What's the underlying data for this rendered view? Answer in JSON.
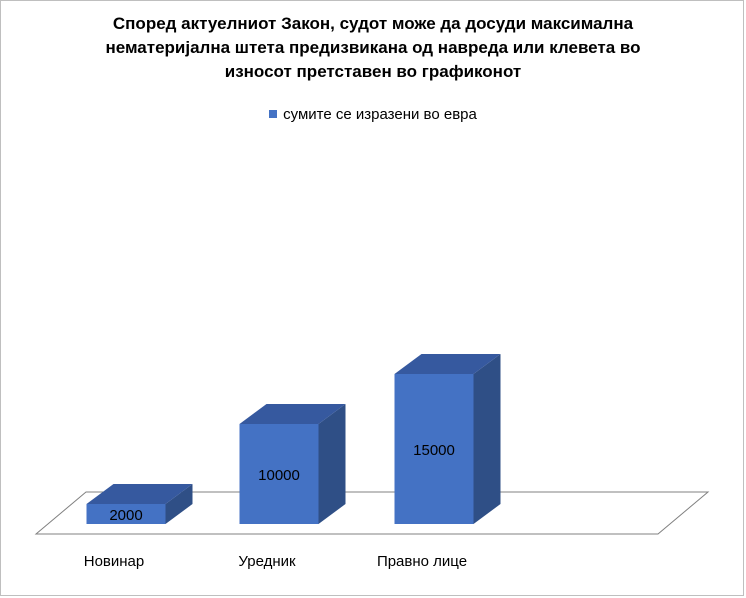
{
  "chart_data": {
    "type": "bar",
    "title_lines": [
      "Според актуелниот Закон, судот може да досуди максимална",
      "нематеријална штета предизвикана од навреда или клевета во",
      "износот претставен во графиконот"
    ],
    "legend": "сумите се изразени во евра",
    "categories": [
      "Новинар",
      "Уредник",
      "Правно лице"
    ],
    "series": [
      {
        "name": "сумите се изразени во евра",
        "values": [
          2000,
          10000,
          15000
        ]
      }
    ],
    "data_labels": [
      "2000",
      "10000",
      "15000"
    ],
    "ylim": [
      0,
      16000
    ],
    "grid": false,
    "legend_position": "top",
    "colors": {
      "front": "#4472c4",
      "side": "#2f4f86",
      "top": "#36599f",
      "floor_stroke": "#808080"
    }
  }
}
